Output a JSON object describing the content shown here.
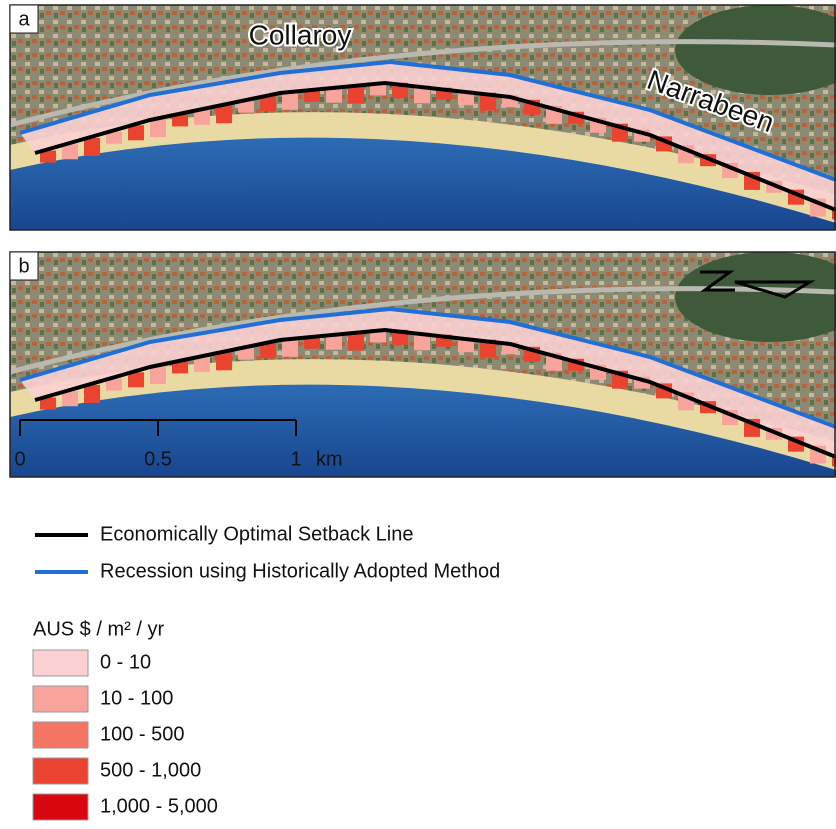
{
  "panels": [
    {
      "label": "a",
      "places": [
        "Collaroy",
        "Narrabeen"
      ]
    },
    {
      "label": "b",
      "scale_bar": {
        "ticks": [
          "0",
          "0.5",
          "1"
        ],
        "unit": "km"
      }
    }
  ],
  "legend": {
    "lines": [
      {
        "label": "Economically Optimal Setback Line",
        "color": "#000000"
      },
      {
        "label": "Recession using Historically Adopted Method",
        "color": "#1f6fd6"
      }
    ],
    "title": "AUS $ / m² / yr",
    "classes": [
      {
        "label": "0 - 10",
        "color": "#fbd0d2"
      },
      {
        "label": "10 - 100",
        "color": "#f8a39c"
      },
      {
        "label": "100 - 500",
        "color": "#f47563"
      },
      {
        "label": "500 - 1,000",
        "color": "#ea4430"
      },
      {
        "label": "1,000 - 5,000",
        "color": "#d8060e"
      }
    ]
  }
}
